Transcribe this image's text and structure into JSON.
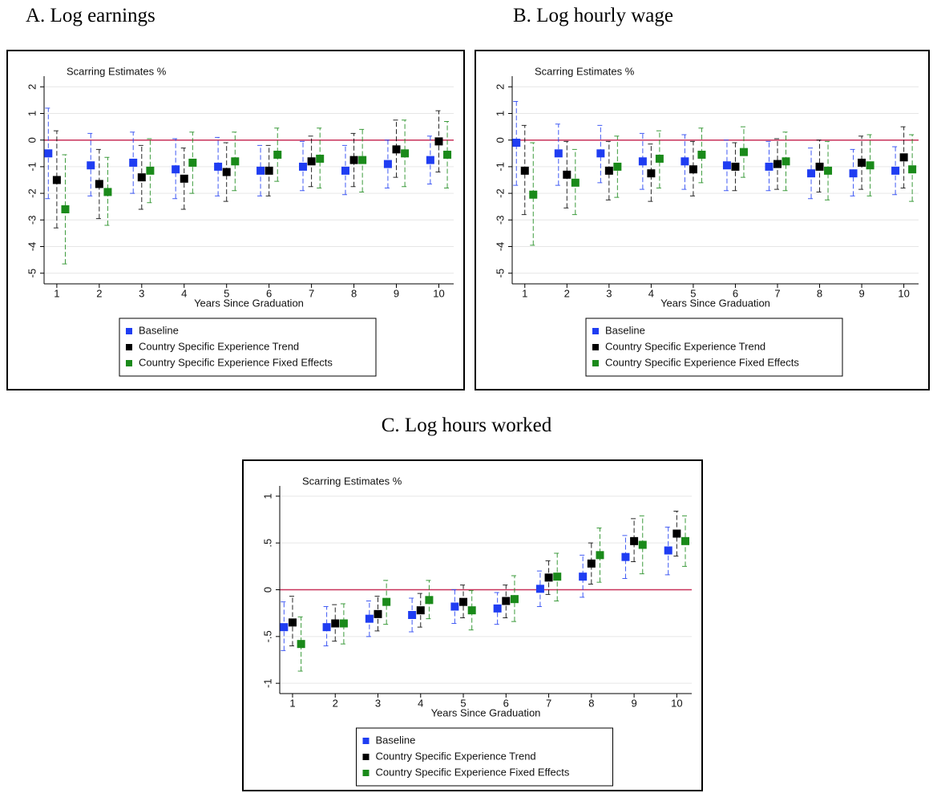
{
  "chart_data": [
    {
      "type": "errorbar",
      "title": "A.  Log earnings",
      "ylabel": "Scarring Estimates %",
      "xlabel": "Years Since Graduation",
      "x": [
        1,
        2,
        3,
        4,
        5,
        6,
        7,
        8,
        9,
        10
      ],
      "xticks": [
        1,
        2,
        3,
        4,
        5,
        6,
        7,
        8,
        9,
        10
      ],
      "xlim": [
        0.7,
        10.35
      ],
      "ylim": [
        -5.4,
        2.4
      ],
      "yticks": [
        2,
        1,
        0,
        -1,
        -2,
        -3,
        -4,
        -5
      ],
      "grid": true,
      "refline": 0,
      "refline_color": "#c8325a",
      "series": [
        {
          "name": "Baseline",
          "color": "#1f3df2",
          "values": [
            -0.5,
            -0.95,
            -0.85,
            -1.1,
            -1.0,
            -1.15,
            -1.0,
            -1.15,
            -0.9,
            -0.75
          ],
          "lower": [
            -2.2,
            -2.1,
            -2.0,
            -2.2,
            -2.1,
            -2.1,
            -1.9,
            -2.05,
            -1.8,
            -1.65
          ],
          "upper": [
            1.2,
            0.25,
            0.3,
            0.05,
            0.1,
            -0.2,
            -0.05,
            -0.2,
            0.0,
            0.15
          ]
        },
        {
          "name": "Country Specific Experience Trend",
          "color": "#000000",
          "values": [
            -1.5,
            -1.65,
            -1.4,
            -1.45,
            -1.2,
            -1.15,
            -0.8,
            -0.75,
            -0.35,
            -0.05
          ],
          "lower": [
            -3.3,
            -2.95,
            -2.6,
            -2.6,
            -2.3,
            -2.1,
            -1.75,
            -1.75,
            -1.4,
            -1.2
          ],
          "upper": [
            0.35,
            -0.35,
            -0.2,
            -0.3,
            -0.1,
            -0.2,
            0.15,
            0.25,
            0.75,
            1.1
          ]
        },
        {
          "name": "Country Specific Experience Fixed Effects",
          "color": "#1a8a1a",
          "values": [
            -2.6,
            -1.95,
            -1.15,
            -0.85,
            -0.8,
            -0.55,
            -0.7,
            -0.75,
            -0.5,
            -0.55
          ],
          "lower": [
            -4.65,
            -3.2,
            -2.35,
            -2.0,
            -1.9,
            -1.55,
            -1.8,
            -1.95,
            -1.75,
            -1.8
          ],
          "upper": [
            -0.55,
            -0.65,
            0.05,
            0.3,
            0.3,
            0.45,
            0.45,
            0.4,
            0.75,
            0.7
          ]
        }
      ]
    },
    {
      "type": "errorbar",
      "title": "B.  Log hourly wage",
      "ylabel": "Scarring Estimates %",
      "xlabel": "Years Since Graduation",
      "x": [
        1,
        2,
        3,
        4,
        5,
        6,
        7,
        8,
        9,
        10
      ],
      "xticks": [
        1,
        2,
        3,
        4,
        5,
        6,
        7,
        8,
        9,
        10
      ],
      "xlim": [
        0.7,
        10.35
      ],
      "ylim": [
        -5.4,
        2.4
      ],
      "yticks": [
        2,
        1,
        0,
        -1,
        -2,
        -3,
        -4,
        -5
      ],
      "grid": true,
      "refline": 0,
      "refline_color": "#c8325a",
      "series": [
        {
          "name": "Baseline",
          "color": "#1f3df2",
          "values": [
            -0.1,
            -0.5,
            -0.5,
            -0.8,
            -0.8,
            -0.95,
            -1.0,
            -1.25,
            -1.25,
            -1.15
          ],
          "lower": [
            -1.7,
            -1.7,
            -1.6,
            -1.85,
            -1.85,
            -1.9,
            -1.9,
            -2.2,
            -2.1,
            -2.05
          ],
          "upper": [
            1.45,
            0.6,
            0.55,
            0.25,
            0.2,
            0.0,
            -0.05,
            -0.3,
            -0.35,
            -0.25
          ]
        },
        {
          "name": "Country Specific Experience Trend",
          "color": "#000000",
          "values": [
            -1.15,
            -1.3,
            -1.15,
            -1.25,
            -1.1,
            -1.0,
            -0.9,
            -1.0,
            -0.85,
            -0.65
          ],
          "lower": [
            -2.8,
            -2.55,
            -2.25,
            -2.3,
            -2.1,
            -1.9,
            -1.85,
            -1.95,
            -1.85,
            -1.8
          ],
          "upper": [
            0.55,
            -0.05,
            -0.05,
            -0.15,
            -0.05,
            -0.1,
            0.05,
            0.0,
            0.15,
            0.5
          ]
        },
        {
          "name": "Country Specific Experience Fixed Effects",
          "color": "#1a8a1a",
          "values": [
            -2.05,
            -1.6,
            -1.0,
            -0.7,
            -0.55,
            -0.45,
            -0.8,
            -1.15,
            -0.95,
            -1.1
          ],
          "lower": [
            -3.95,
            -2.8,
            -2.15,
            -1.8,
            -1.6,
            -1.4,
            -1.9,
            -2.25,
            -2.1,
            -2.3
          ],
          "upper": [
            -0.1,
            -0.35,
            0.15,
            0.35,
            0.45,
            0.5,
            0.3,
            -0.05,
            0.2,
            0.2
          ]
        }
      ]
    },
    {
      "type": "errorbar",
      "title": "C.  Log hours worked",
      "ylabel": "Scarring Estimates %",
      "xlabel": "Years Since Graduation",
      "x": [
        1,
        2,
        3,
        4,
        5,
        6,
        7,
        8,
        9,
        10
      ],
      "xticks": [
        1,
        2,
        3,
        4,
        5,
        6,
        7,
        8,
        9,
        10
      ],
      "xlim": [
        0.7,
        10.35
      ],
      "ylim": [
        -1.11,
        1.11
      ],
      "yticks": [
        1,
        {
          "value": 0.5,
          "label": ".5"
        },
        0,
        {
          "value": -0.5,
          "label": "-.5"
        },
        -1
      ],
      "grid": true,
      "refline": 0,
      "refline_color": "#c8325a",
      "series": [
        {
          "name": "Baseline",
          "color": "#1f3df2",
          "values": [
            -0.4,
            -0.4,
            -0.31,
            -0.27,
            -0.18,
            -0.2,
            0.01,
            0.14,
            0.35,
            0.42
          ],
          "lower": [
            -0.65,
            -0.6,
            -0.5,
            -0.45,
            -0.36,
            -0.37,
            -0.18,
            -0.08,
            0.12,
            0.16
          ],
          "upper": [
            -0.13,
            -0.18,
            -0.12,
            -0.09,
            0.0,
            -0.03,
            0.2,
            0.37,
            0.58,
            0.67
          ]
        },
        {
          "name": "Country Specific Experience Trend",
          "color": "#000000",
          "values": [
            -0.35,
            -0.36,
            -0.26,
            -0.22,
            -0.13,
            -0.12,
            0.13,
            0.28,
            0.52,
            0.6
          ],
          "lower": [
            -0.6,
            -0.55,
            -0.44,
            -0.4,
            -0.3,
            -0.3,
            -0.05,
            0.06,
            0.3,
            0.36
          ],
          "upper": [
            -0.07,
            -0.16,
            -0.07,
            -0.04,
            0.05,
            0.05,
            0.31,
            0.5,
            0.76,
            0.84
          ]
        },
        {
          "name": "Country Specific Experience Fixed Effects",
          "color": "#1a8a1a",
          "values": [
            -0.58,
            -0.36,
            -0.13,
            -0.11,
            -0.22,
            -0.1,
            0.14,
            0.37,
            0.48,
            0.52
          ],
          "lower": [
            -0.87,
            -0.58,
            -0.37,
            -0.31,
            -0.43,
            -0.34,
            -0.12,
            0.08,
            0.17,
            0.25
          ],
          "upper": [
            -0.29,
            -0.15,
            0.1,
            0.1,
            -0.01,
            0.15,
            0.39,
            0.66,
            0.79,
            0.79
          ]
        }
      ]
    }
  ]
}
